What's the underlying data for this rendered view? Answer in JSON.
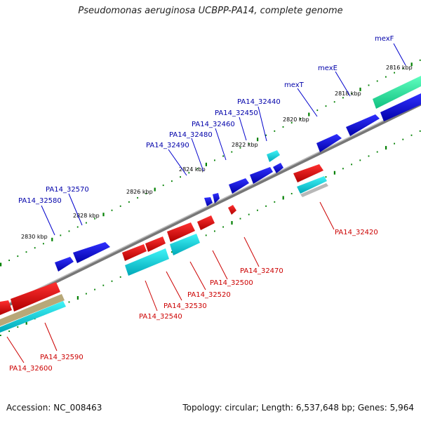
{
  "title": "Pseudomonas aeruginosa UCBPP-PA14, complete genome",
  "footer": {
    "accession": "Accession: NC_008463",
    "stats": "Topology: circular; Length: 6,537,648 bp; Genes: 5,964"
  },
  "scale_labels": [
    "2816 kbp",
    "2818 kbp",
    "2820 kbp",
    "2822 kbp",
    "2824 kbp",
    "2826 kbp",
    "2828 kbp",
    "2830 kbp"
  ],
  "gene_labels_top": [
    "mexF",
    "mexE",
    "mexT",
    "PA14_32440",
    "PA14_32450",
    "PA14_32460",
    "PA14_32480",
    "PA14_32490",
    "PA14_32570",
    "PA14_32580"
  ],
  "gene_labels_bottom": [
    "PA14_32420",
    "PA14_32470",
    "PA14_32500",
    "PA14_32520",
    "PA14_32530",
    "PA14_32540",
    "PA14_32590",
    "PA14_32600"
  ],
  "colors": {
    "forward_gene": "#0000e0",
    "reverse_gene": "#e80000",
    "forward_cds": "#00b8c8",
    "reverse_cds": "#00e0e8",
    "rrna_feature": "#2ee8a0",
    "misc_feature": "#b8a878",
    "backbone": "#808080",
    "tick": "#008000",
    "top_label": "#0000aa",
    "bottom_label": "#cc0000"
  }
}
